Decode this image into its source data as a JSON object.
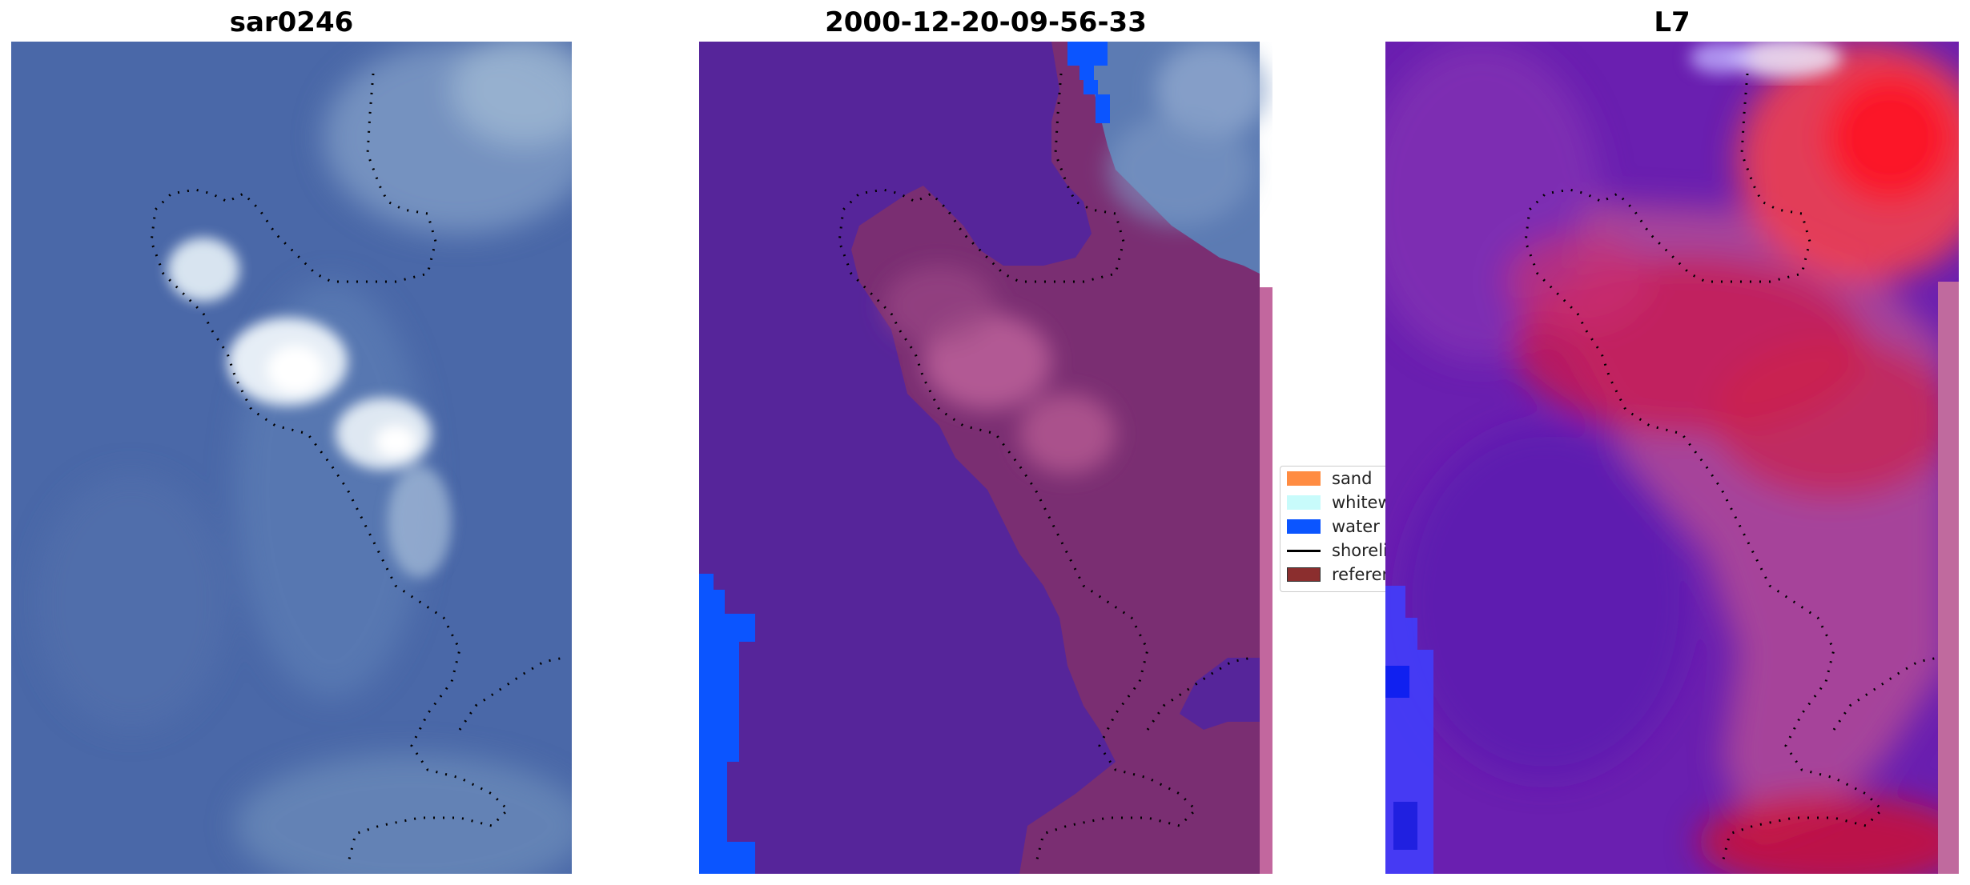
{
  "panels": [
    {
      "title": "sar0246"
    },
    {
      "title": "2000-12-20-09-56-33"
    },
    {
      "title": "L7"
    }
  ],
  "legend": {
    "items": [
      {
        "label": "sand",
        "color": "#ff8c42",
        "kind": "patch"
      },
      {
        "label": "whitewater",
        "color": "#c8fbfb",
        "kind": "patch"
      },
      {
        "label": "water",
        "color": "#0b55ff",
        "kind": "patch"
      },
      {
        "label": "shoreline",
        "color": "#000000",
        "kind": "line"
      },
      {
        "label": "reference shoreline",
        "color": "#8b2e2e",
        "kind": "patch"
      }
    ]
  },
  "colors": {
    "ocean_blue": "#4a68a8",
    "land_purple": "#56259a",
    "water_class": "#0b55ff",
    "reef_maroon": "#7a2e72",
    "index_red": "#d01028"
  }
}
